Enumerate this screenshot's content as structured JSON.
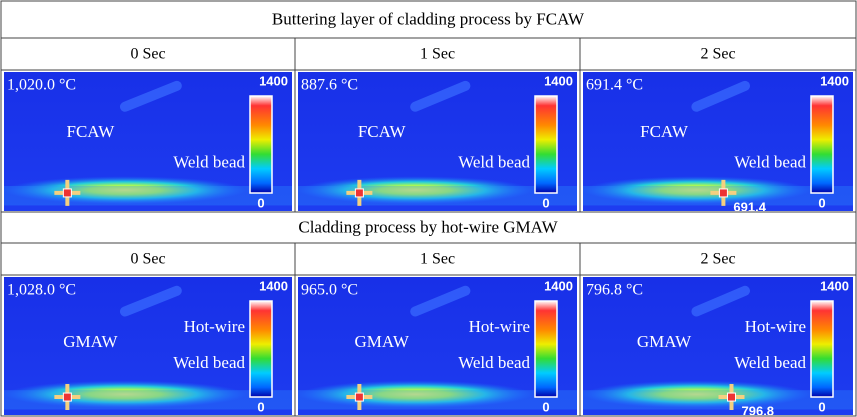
{
  "sections": [
    {
      "title": "Buttering layer of cladding process by FCAW",
      "panels": [
        {
          "time": "0 Sec",
          "temperature": "1,020.0 °C",
          "scale_max": "1400",
          "scale_min": "0",
          "labels": [
            "FCAW",
            "Weld bead"
          ]
        },
        {
          "time": "1 Sec",
          "temperature": "887.6 °C",
          "scale_max": "1400",
          "scale_min": "0",
          "labels": [
            "FCAW",
            "Weld bead"
          ]
        },
        {
          "time": "2 Sec",
          "temperature": "691.4 °C",
          "scale_max": "1400",
          "scale_min": "0",
          "labels": [
            "FCAW",
            "Weld bead"
          ],
          "marker_reading": "691.4"
        }
      ]
    },
    {
      "title": "Cladding process by hot-wire GMAW",
      "panels": [
        {
          "time": "0 Sec",
          "temperature": "1,028.0 °C",
          "scale_max": "1400",
          "scale_min": "0",
          "labels": [
            "Hot-wire",
            "GMAW",
            "Weld bead"
          ]
        },
        {
          "time": "1 Sec",
          "temperature": "965.0 °C",
          "scale_max": "1400",
          "scale_min": "0",
          "labels": [
            "Hot-wire",
            "GMAW",
            "Weld bead"
          ]
        },
        {
          "time": "2 Sec",
          "temperature": "796.8 °C",
          "scale_max": "1400",
          "scale_min": "0",
          "labels": [
            "Hot-wire",
            "GMAW",
            "Weld bead"
          ],
          "marker_reading": "796.8"
        }
      ]
    }
  ]
}
